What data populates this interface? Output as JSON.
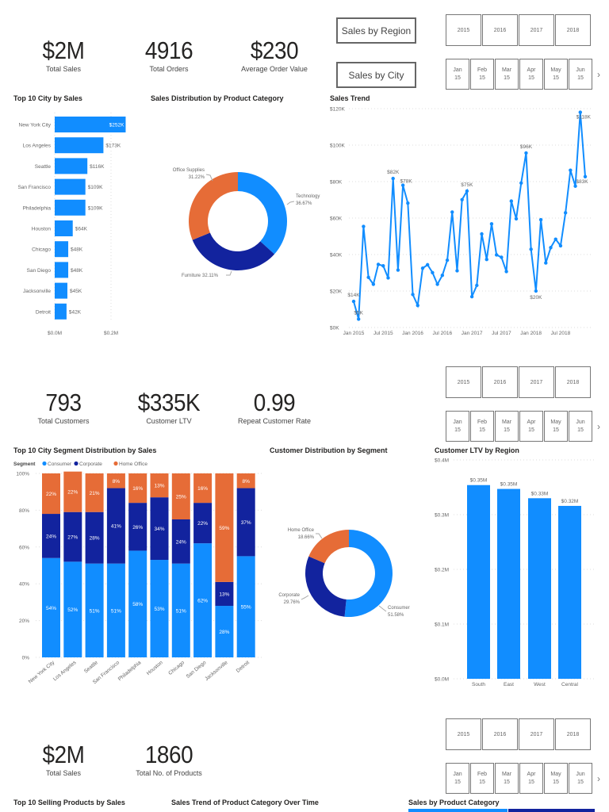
{
  "section1": {
    "kpis": [
      {
        "value": "$2M",
        "label": "Total Sales"
      },
      {
        "value": "4916",
        "label": "Total Orders"
      },
      {
        "value": "$230",
        "label": "Average Order Value"
      }
    ],
    "buttons": {
      "region": "Sales by Region",
      "city": "Sales by City"
    },
    "titles": {
      "bar": "Top 10 City by Sales",
      "donut": "Sales Distribution by Product Category",
      "line": "Sales Trend"
    }
  },
  "section2": {
    "kpis": [
      {
        "value": "793",
        "label": "Total Customers"
      },
      {
        "value": "$335K",
        "label": "Customer LTV"
      },
      {
        "value": "0.99",
        "label": "Repeat Customer Rate"
      }
    ],
    "titles": {
      "stacked": "Top 10 City Segment Distribution by Sales",
      "donut": "Customer Distribution by Segment",
      "ltv": "Customer LTV by Region"
    },
    "legend": {
      "title": "Segment",
      "items": [
        "Consumer",
        "Corporate",
        "Home Office"
      ]
    }
  },
  "section3": {
    "kpis": [
      {
        "value": "$2M",
        "label": "Total Sales"
      },
      {
        "value": "1860",
        "label": "Total No. of Products"
      }
    ],
    "titles": {
      "products": "Top 10 Selling Products by Sales",
      "trend": "Sales Trend of Product Category Over Time",
      "category": "Sales by Product Category"
    }
  },
  "slicer": {
    "years": [
      "2015",
      "2016",
      "2017",
      "2018"
    ],
    "months": [
      {
        "m": "Jan",
        "y": "15"
      },
      {
        "m": "Feb",
        "y": "15"
      },
      {
        "m": "Mar",
        "y": "15"
      },
      {
        "m": "Apr",
        "y": "15"
      },
      {
        "m": "May",
        "y": "15"
      },
      {
        "m": "Jun",
        "y": "15"
      }
    ],
    "next_icon": "chevron-right-icon"
  },
  "colors": {
    "consumer_blue": "#118DFF",
    "corporate_navy": "#12239E",
    "home_office_orange": "#E66C37"
  },
  "chart_data": [
    {
      "type": "bar",
      "orientation": "horizontal",
      "title": "Top 10 City by Sales",
      "categories": [
        "New York City",
        "Los Angeles",
        "Seattle",
        "San Francisco",
        "Philadelphia",
        "Houston",
        "Chicago",
        "San Diego",
        "Jacksonville",
        "Detroit"
      ],
      "values": [
        252,
        173,
        116,
        109,
        109,
        64,
        48,
        48,
        45,
        42
      ],
      "data_labels": [
        "$252K",
        "$173K",
        "$116K",
        "$109K",
        "$109K",
        "$64K",
        "$48K",
        "$48K",
        "$45K",
        "$42K"
      ],
      "xticks": [
        "$0.0M",
        "$0.2M"
      ],
      "unit": "$K",
      "xlim": [
        0,
        200
      ]
    },
    {
      "type": "pie",
      "style": "donut",
      "title": "Sales Distribution by Product Category",
      "categories": [
        "Technology",
        "Furniture",
        "Office Supplies"
      ],
      "values": [
        36.67,
        32.11,
        31.22
      ],
      "labels": [
        "36.67%",
        "32.11%",
        "31.22%"
      ]
    },
    {
      "type": "line",
      "title": "Sales Trend",
      "x_start": "Jan 2015",
      "x_end": "Dec 2018",
      "xticks": [
        "Jan 2015",
        "Jul 2015",
        "Jan 2016",
        "Jul 2016",
        "Jan 2017",
        "Jul 2017",
        "Jan 2018",
        "Jul 2018"
      ],
      "yticks": [
        "$0K",
        "$20K",
        "$40K",
        "$60K",
        "$80K",
        "$100K",
        "$120K"
      ],
      "ylim": [
        0,
        120
      ],
      "unit": "$K",
      "values": [
        14.3,
        4.6,
        55.4,
        27.5,
        23.7,
        34.6,
        33.8,
        27.2,
        81.7,
        31.5,
        78,
        68.2,
        18.1,
        12.1,
        32.5,
        34.4,
        30.1,
        23.7,
        28.6,
        36.9,
        63.3,
        31.1,
        70.1,
        74.8,
        16.9,
        23.1,
        51.3,
        37.3,
        56.8,
        39.8,
        38.5,
        30.7,
        69.3,
        59.6,
        79.2,
        95.7,
        42.9,
        20,
        59.1,
        35.4,
        43.8,
        48.4,
        44.8,
        62.9,
        86.2,
        77.5,
        118,
        82.7
      ],
      "point_labels": {
        "0": "$14K",
        "1": "$5K",
        "8": "$82K",
        "10": "$78K",
        "23": "$75K",
        "35": "$96K",
        "37": "$20K",
        "46": "$118K",
        "47": "$83K"
      },
      "grid": true
    },
    {
      "type": "bar",
      "stacked": "100%",
      "title": "Top 10 City Segment Distribution by Sales",
      "categories": [
        "New York City",
        "Los Angeles",
        "Seattle",
        "San Francisco",
        "Philadelphia",
        "Houston",
        "Chicago",
        "San Diego",
        "Jacksonville",
        "Detroit"
      ],
      "series": [
        {
          "name": "Consumer",
          "values": [
            54,
            52,
            51,
            51,
            58,
            53,
            51,
            62,
            28,
            55
          ]
        },
        {
          "name": "Corporate",
          "values": [
            24,
            27,
            28,
            41,
            26,
            34,
            24,
            22,
            13,
            37
          ]
        },
        {
          "name": "Home Office",
          "values": [
            22,
            22,
            21,
            8,
            16,
            13,
            25,
            16,
            59,
            8
          ]
        }
      ],
      "yticks": [
        "0%",
        "20%",
        "40%",
        "60%",
        "80%",
        "100%"
      ],
      "ylim": [
        0,
        100
      ],
      "legend": "top-left"
    },
    {
      "type": "pie",
      "style": "donut",
      "title": "Customer Distribution by Segment",
      "categories": [
        "Consumer",
        "Corporate",
        "Home Office"
      ],
      "values": [
        51.58,
        29.76,
        18.66
      ],
      "labels": [
        "51.58%",
        "29.76%",
        "18.66%"
      ]
    },
    {
      "type": "bar",
      "title": "Customer LTV by Region",
      "categories": [
        "South",
        "East",
        "West",
        "Central"
      ],
      "values": [
        0.354,
        0.347,
        0.33,
        0.316
      ],
      "data_labels": [
        "$0.35M",
        "$0.35M",
        "$0.33M",
        "$0.32M"
      ],
      "yticks": [
        "$0.0M",
        "$0.1M",
        "$0.2M",
        "$0.3M",
        "$0.4M"
      ],
      "ylim": [
        0,
        0.4
      ],
      "unit": "$M"
    }
  ]
}
